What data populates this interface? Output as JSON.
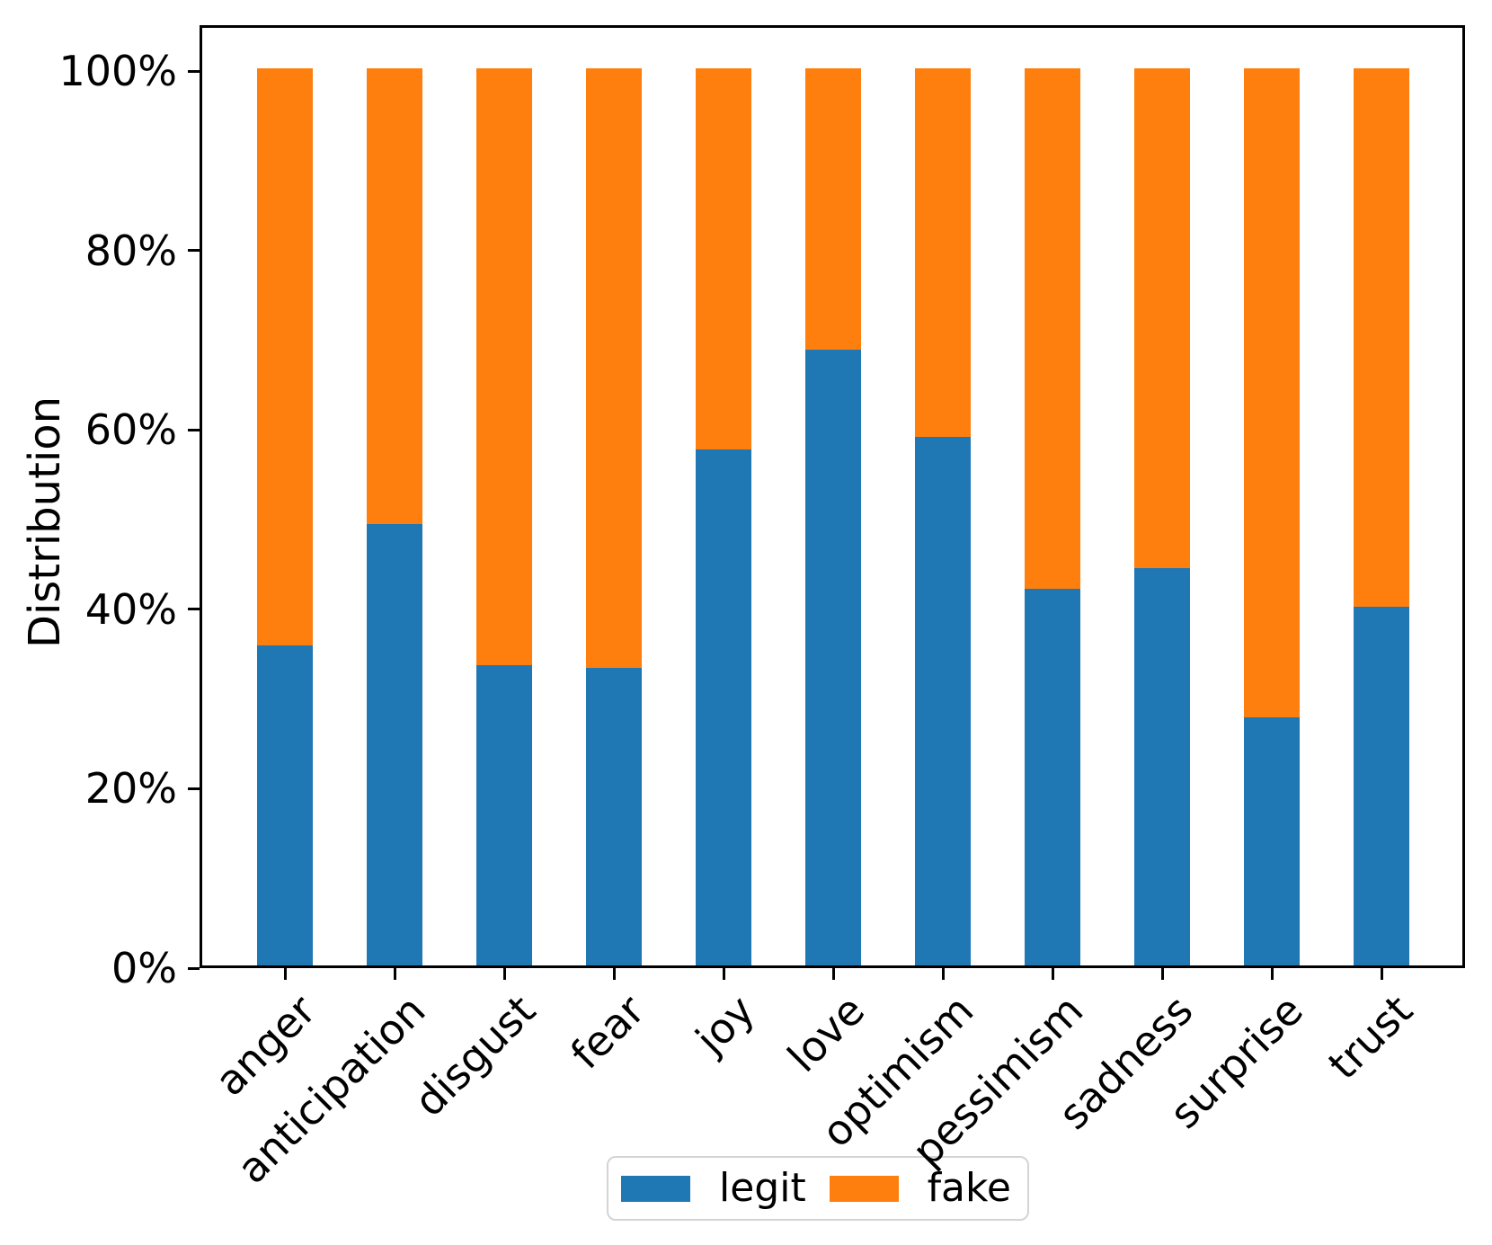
{
  "figure": {
    "background": "#ffffff"
  },
  "chart_data": {
    "type": "bar",
    "stacked": true,
    "percentage": true,
    "title": "",
    "xlabel": "",
    "ylabel": "Distribution",
    "categories": [
      "anger",
      "anticipation",
      "disgust",
      "fear",
      "joy",
      "love",
      "optimism",
      "pessimism",
      "sadness",
      "surprise",
      "trust"
    ],
    "series": [
      {
        "name": "legit",
        "color": "#1f77b4",
        "values": [
          35.7,
          49.2,
          33.5,
          33.2,
          57.5,
          68.6,
          58.9,
          42.0,
          44.3,
          27.7,
          40.0
        ]
      },
      {
        "name": "fake",
        "color": "#ff7f0e",
        "values": [
          64.3,
          50.8,
          66.5,
          66.8,
          42.5,
          31.4,
          41.1,
          58.0,
          55.7,
          72.3,
          60.0
        ]
      }
    ],
    "ylim": [
      0,
      100
    ],
    "yticks": [
      {
        "value": 0,
        "label": "0%"
      },
      {
        "value": 20,
        "label": "20%"
      },
      {
        "value": 40,
        "label": "40%"
      },
      {
        "value": 60,
        "label": "60%"
      },
      {
        "value": 80,
        "label": "80%"
      },
      {
        "value": 100,
        "label": "100%"
      }
    ],
    "grid": false,
    "legend": {
      "position": "bottom-center",
      "entries": [
        "legit",
        "fake"
      ]
    }
  }
}
